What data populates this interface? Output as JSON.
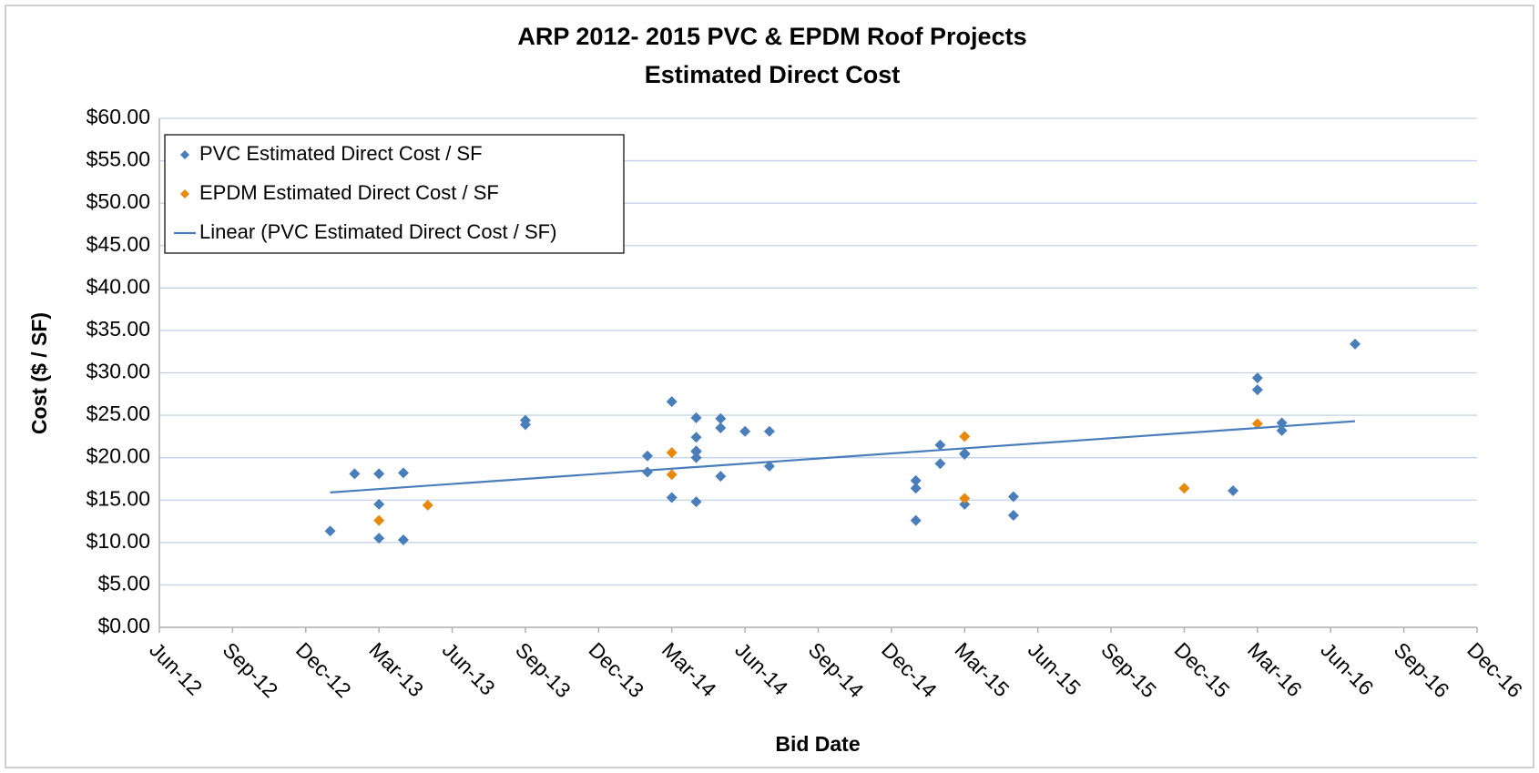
{
  "chart_data": {
    "type": "scatter",
    "title": "ARP 2012- 2015 PVC & EPDM Roof Projects",
    "subtitle": "Estimated Direct Cost",
    "x_label": "Bid Date",
    "y_label": "Cost ($ / SF)",
    "xlim": [
      "2012-06",
      "2016-12"
    ],
    "xticks": [
      {
        "value": "2012-06",
        "label": "Jun-12"
      },
      {
        "value": "2012-09",
        "label": "Sep-12"
      },
      {
        "value": "2012-12",
        "label": "Dec-12"
      },
      {
        "value": "2013-03",
        "label": "Mar-13"
      },
      {
        "value": "2013-06",
        "label": "Jun-13"
      },
      {
        "value": "2013-09",
        "label": "Sep-13"
      },
      {
        "value": "2013-12",
        "label": "Dec-13"
      },
      {
        "value": "2014-03",
        "label": "Mar-14"
      },
      {
        "value": "2014-06",
        "label": "Jun-14"
      },
      {
        "value": "2014-09",
        "label": "Sep-14"
      },
      {
        "value": "2014-12",
        "label": "Dec-14"
      },
      {
        "value": "2015-03",
        "label": "Mar-15"
      },
      {
        "value": "2015-06",
        "label": "Jun-15"
      },
      {
        "value": "2015-09",
        "label": "Sep-15"
      },
      {
        "value": "2015-12",
        "label": "Dec-15"
      },
      {
        "value": "2016-03",
        "label": "Mar-16"
      },
      {
        "value": "2016-06",
        "label": "Jun-16"
      },
      {
        "value": "2016-09",
        "label": "Sep-16"
      },
      {
        "value": "2016-12",
        "label": "Dec-16"
      }
    ],
    "ylim": [
      0,
      60
    ],
    "yticks": [
      {
        "value": 0,
        "label": "$0.00"
      },
      {
        "value": 5,
        "label": "$5.00"
      },
      {
        "value": 10,
        "label": "$10.00"
      },
      {
        "value": 15,
        "label": "$15.00"
      },
      {
        "value": 20,
        "label": "$20.00"
      },
      {
        "value": 25,
        "label": "$25.00"
      },
      {
        "value": 30,
        "label": "$30.00"
      },
      {
        "value": 35,
        "label": "$35.00"
      },
      {
        "value": 40,
        "label": "$40.00"
      },
      {
        "value": 45,
        "label": "$45.00"
      },
      {
        "value": 50,
        "label": "$50.00"
      },
      {
        "value": 55,
        "label": "$55.00"
      },
      {
        "value": 60,
        "label": "$60.00"
      }
    ],
    "grid": true,
    "legend": "top-left",
    "series": [
      {
        "name": "PVC Estimated Direct Cost / SF",
        "color": "#4a7ebb",
        "marker": "diamond",
        "x": [
          "2013-01",
          "2013-02",
          "2013-03",
          "2013-03",
          "2013-03",
          "2013-04",
          "2013-04",
          "2013-09",
          "2013-09",
          "2014-02",
          "2014-02",
          "2014-03",
          "2014-03",
          "2014-04",
          "2014-04",
          "2014-04",
          "2014-04",
          "2014-04",
          "2014-04",
          "2014-05",
          "2014-05",
          "2014-05",
          "2014-06",
          "2014-07",
          "2014-07",
          "2015-01",
          "2015-01",
          "2015-01",
          "2015-02",
          "2015-02",
          "2015-03",
          "2015-03",
          "2015-03",
          "2015-05",
          "2015-05",
          "2016-02",
          "2016-03",
          "2016-03",
          "2016-04",
          "2016-04",
          "2016-07"
        ],
        "values": [
          11.35,
          18.1,
          14.5,
          18.1,
          10.5,
          10.3,
          18.2,
          24.4,
          23.9,
          20.2,
          18.3,
          26.6,
          15.3,
          24.7,
          20.8,
          20.0,
          22.4,
          14.8,
          20.7,
          17.8,
          24.6,
          23.5,
          23.1,
          19.0,
          23.1,
          17.3,
          16.4,
          12.6,
          19.3,
          21.5,
          20.4,
          20.5,
          14.5,
          15.4,
          13.2,
          16.1,
          29.4,
          28.0,
          24.1,
          23.2,
          33.4
        ]
      },
      {
        "name": "EPDM Estimated Direct Cost / SF",
        "color": "#e8890c",
        "marker": "diamond",
        "x": [
          "2013-03",
          "2013-05",
          "2014-03",
          "2014-03",
          "2015-03",
          "2015-03",
          "2015-12",
          "2016-03"
        ],
        "values": [
          12.6,
          14.4,
          20.6,
          18.0,
          22.5,
          15.2,
          16.4,
          24.0
        ]
      },
      {
        "name": "Linear (PVC Estimated Direct Cost / SF)",
        "color": "#4a7ebb",
        "marker": "line",
        "x": [
          "2013-01",
          "2016-07"
        ],
        "values": [
          15.9,
          24.3
        ]
      }
    ]
  }
}
